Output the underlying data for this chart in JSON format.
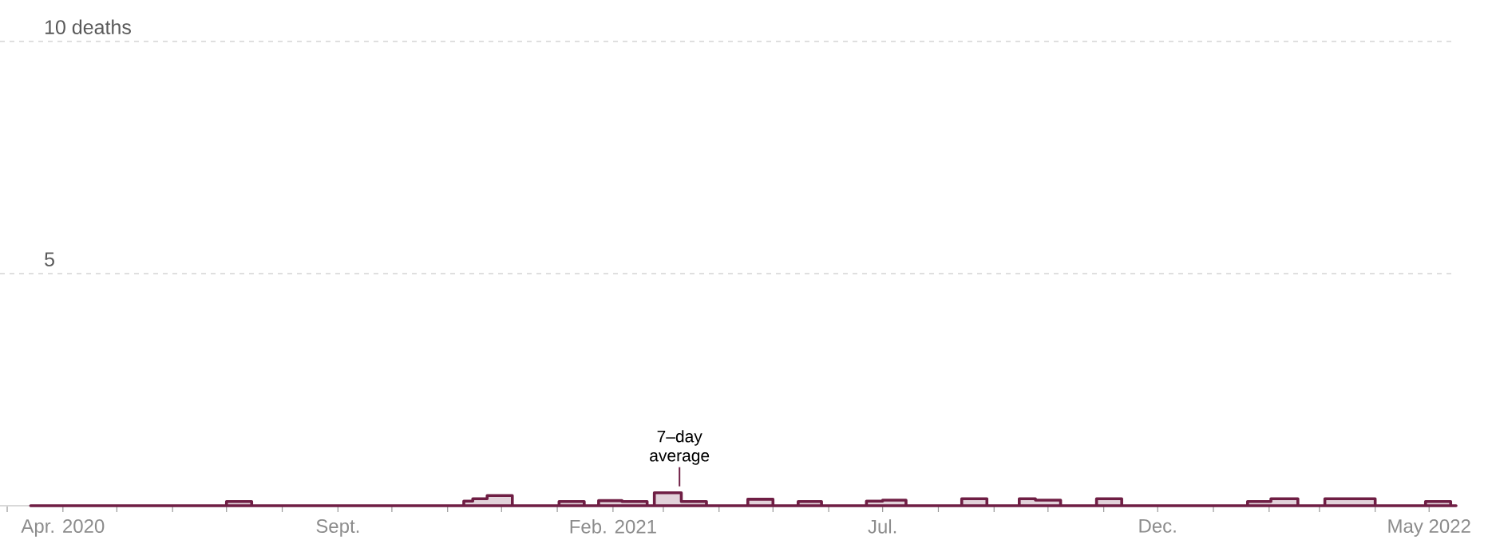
{
  "chart_data": {
    "type": "area",
    "x": [
      "2020-03-14",
      "2020-07-01",
      "2020-07-15",
      "2020-11-10",
      "2020-11-15",
      "2020-11-23",
      "2020-12-07",
      "2021-01-02",
      "2021-01-16",
      "2021-01-24",
      "2021-02-06",
      "2021-02-20",
      "2021-02-24",
      "2021-03-11",
      "2021-03-25",
      "2021-04-17",
      "2021-05-01",
      "2021-05-15",
      "2021-05-28",
      "2021-06-22",
      "2021-07-01",
      "2021-07-14",
      "2021-08-14",
      "2021-08-28",
      "2021-09-15",
      "2021-09-24",
      "2021-10-08",
      "2021-10-28",
      "2021-11-11",
      "2022-01-20",
      "2022-02-02",
      "2022-02-17",
      "2022-03-04",
      "2022-04-01",
      "2022-04-29",
      "2022-05-13",
      "2022-05-16"
    ],
    "series": [
      {
        "color": "#6f1e44",
        "values": [
          0,
          0.09,
          0,
          0.1,
          0.15,
          0.22,
          0,
          0.09,
          0,
          0.11,
          0.09,
          0,
          0.28,
          0.09,
          0,
          0.14,
          0,
          0.09,
          0,
          0.1,
          0.12,
          0,
          0.15,
          0,
          0.15,
          0.12,
          0,
          0.15,
          0,
          0.09,
          0.15,
          0,
          0.15,
          0,
          0.09,
          0,
          0
        ]
      }
    ],
    "xlim": [
      "2020-02-26",
      "2022-05-16"
    ],
    "xticks": [
      {
        "value": "2020-03-01",
        "label": null
      },
      {
        "value": "2020-04-01",
        "label": "Apr. 2020"
      },
      {
        "value": "2020-05-01",
        "label": null
      },
      {
        "value": "2020-06-01",
        "label": null
      },
      {
        "value": "2020-07-01",
        "label": null
      },
      {
        "value": "2020-08-01",
        "label": null
      },
      {
        "value": "2020-09-01",
        "label": "Sept."
      },
      {
        "value": "2020-10-01",
        "label": null
      },
      {
        "value": "2020-11-01",
        "label": null
      },
      {
        "value": "2020-12-01",
        "label": null
      },
      {
        "value": "2021-01-01",
        "label": null
      },
      {
        "value": "2021-02-01",
        "label": "Feb. 2021"
      },
      {
        "value": "2021-03-01",
        "label": null
      },
      {
        "value": "2021-04-01",
        "label": null
      },
      {
        "value": "2021-05-01",
        "label": null
      },
      {
        "value": "2021-06-01",
        "label": null
      },
      {
        "value": "2021-07-01",
        "label": "Jul."
      },
      {
        "value": "2021-08-01",
        "label": null
      },
      {
        "value": "2021-09-01",
        "label": null
      },
      {
        "value": "2021-10-01",
        "label": null
      },
      {
        "value": "2021-11-01",
        "label": null
      },
      {
        "value": "2021-12-01",
        "label": "Dec."
      },
      {
        "value": "2022-01-01",
        "label": null
      },
      {
        "value": "2022-02-01",
        "label": null
      },
      {
        "value": "2022-03-01",
        "label": null
      },
      {
        "value": "2022-04-01",
        "label": null
      },
      {
        "value": "2022-05-01",
        "label": "May 2022"
      }
    ],
    "ylim": [
      0,
      10
    ],
    "yticks": [
      {
        "value": 5,
        "label": "5"
      },
      {
        "value": 10,
        "label": "10 deaths"
      }
    ],
    "grid": "y",
    "annotations": [
      {
        "text": "7–day average",
        "x": "2021-03-10",
        "y": 0.28
      }
    ]
  }
}
